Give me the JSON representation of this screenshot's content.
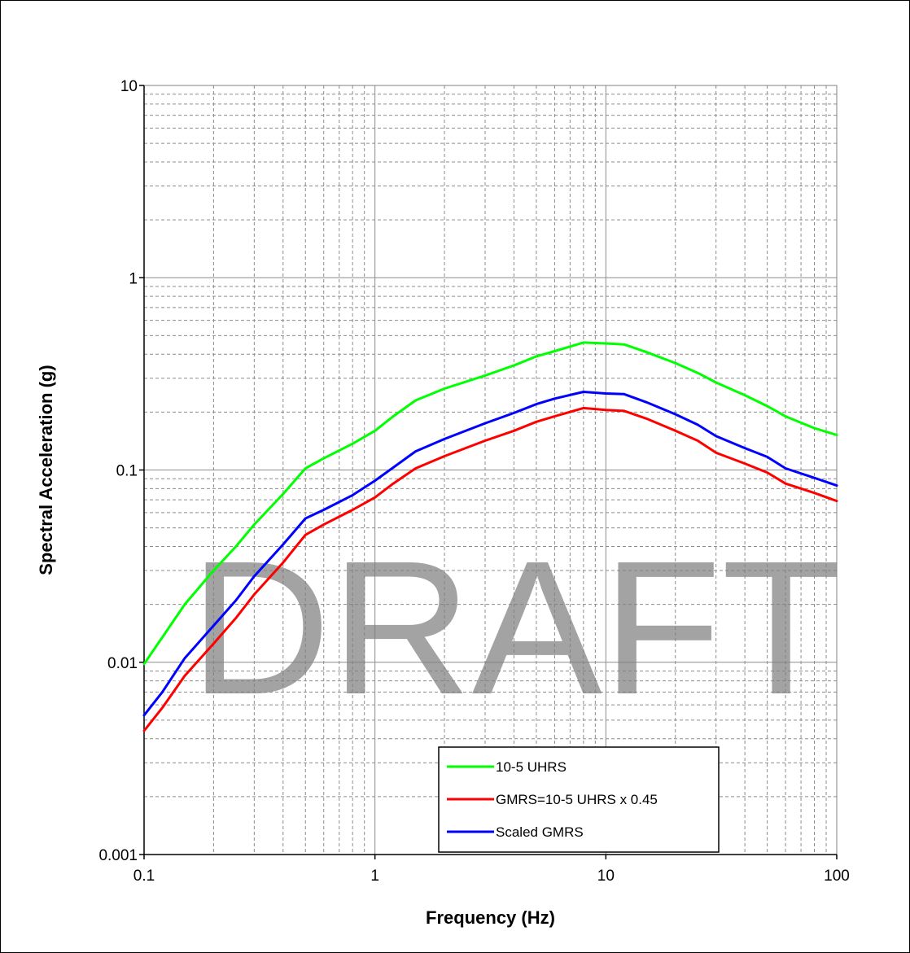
{
  "chart_data": {
    "type": "line",
    "title": "",
    "xlabel": "Frequency (Hz)",
    "ylabel": "Spectral Acceleration (g)",
    "x_scale": "log",
    "y_scale": "log",
    "xlim": [
      0.1,
      100
    ],
    "ylim": [
      0.001,
      10
    ],
    "x_tick_labels": [
      "0.1",
      "1",
      "10",
      "100"
    ],
    "y_tick_labels": [
      "0.001",
      "0.01",
      "0.1",
      "1",
      "10"
    ],
    "grid": true,
    "legend_position": "bottom-center",
    "watermark": "DRAFT",
    "series": [
      {
        "name": "10-5 UHRS",
        "color": "#00ff00",
        "x": [
          0.1,
          0.12,
          0.15,
          0.2,
          0.25,
          0.3,
          0.4,
          0.5,
          0.6,
          0.8,
          1.0,
          1.2,
          1.5,
          2,
          3,
          4,
          5,
          6,
          8,
          10,
          12,
          15,
          20,
          25,
          30,
          40,
          50,
          60,
          80,
          100
        ],
        "values": [
          0.0098,
          0.0135,
          0.02,
          0.03,
          0.04,
          0.052,
          0.075,
          0.102,
          0.115,
          0.137,
          0.16,
          0.19,
          0.23,
          0.265,
          0.31,
          0.35,
          0.39,
          0.415,
          0.46,
          0.455,
          0.45,
          0.41,
          0.36,
          0.32,
          0.285,
          0.245,
          0.215,
          0.19,
          0.165,
          0.152
        ]
      },
      {
        "name": "GMRS=10-5 UHRS x 0.45",
        "color": "#ff0000",
        "x": [
          0.1,
          0.12,
          0.15,
          0.2,
          0.25,
          0.3,
          0.4,
          0.5,
          0.6,
          0.8,
          1.0,
          1.2,
          1.5,
          2,
          3,
          4,
          5,
          6,
          8,
          10,
          12,
          15,
          20,
          25,
          30,
          40,
          50,
          60,
          80,
          100
        ],
        "values": [
          0.0044,
          0.0058,
          0.0085,
          0.0125,
          0.017,
          0.0225,
          0.033,
          0.046,
          0.052,
          0.062,
          0.072,
          0.085,
          0.102,
          0.118,
          0.142,
          0.16,
          0.178,
          0.19,
          0.21,
          0.205,
          0.203,
          0.185,
          0.16,
          0.142,
          0.123,
          0.108,
          0.097,
          0.085,
          0.076,
          0.069
        ]
      },
      {
        "name": "Scaled GMRS",
        "color": "#0000ff",
        "x": [
          0.1,
          0.12,
          0.15,
          0.2,
          0.25,
          0.3,
          0.4,
          0.5,
          0.6,
          0.8,
          1.0,
          1.2,
          1.5,
          2,
          3,
          4,
          5,
          6,
          8,
          10,
          12,
          15,
          20,
          25,
          30,
          40,
          50,
          60,
          80,
          100
        ],
        "values": [
          0.0053,
          0.007,
          0.0105,
          0.0155,
          0.021,
          0.028,
          0.041,
          0.056,
          0.062,
          0.074,
          0.088,
          0.103,
          0.125,
          0.145,
          0.175,
          0.198,
          0.22,
          0.235,
          0.255,
          0.25,
          0.248,
          0.225,
          0.195,
          0.172,
          0.15,
          0.13,
          0.117,
          0.102,
          0.091,
          0.083
        ]
      }
    ]
  }
}
